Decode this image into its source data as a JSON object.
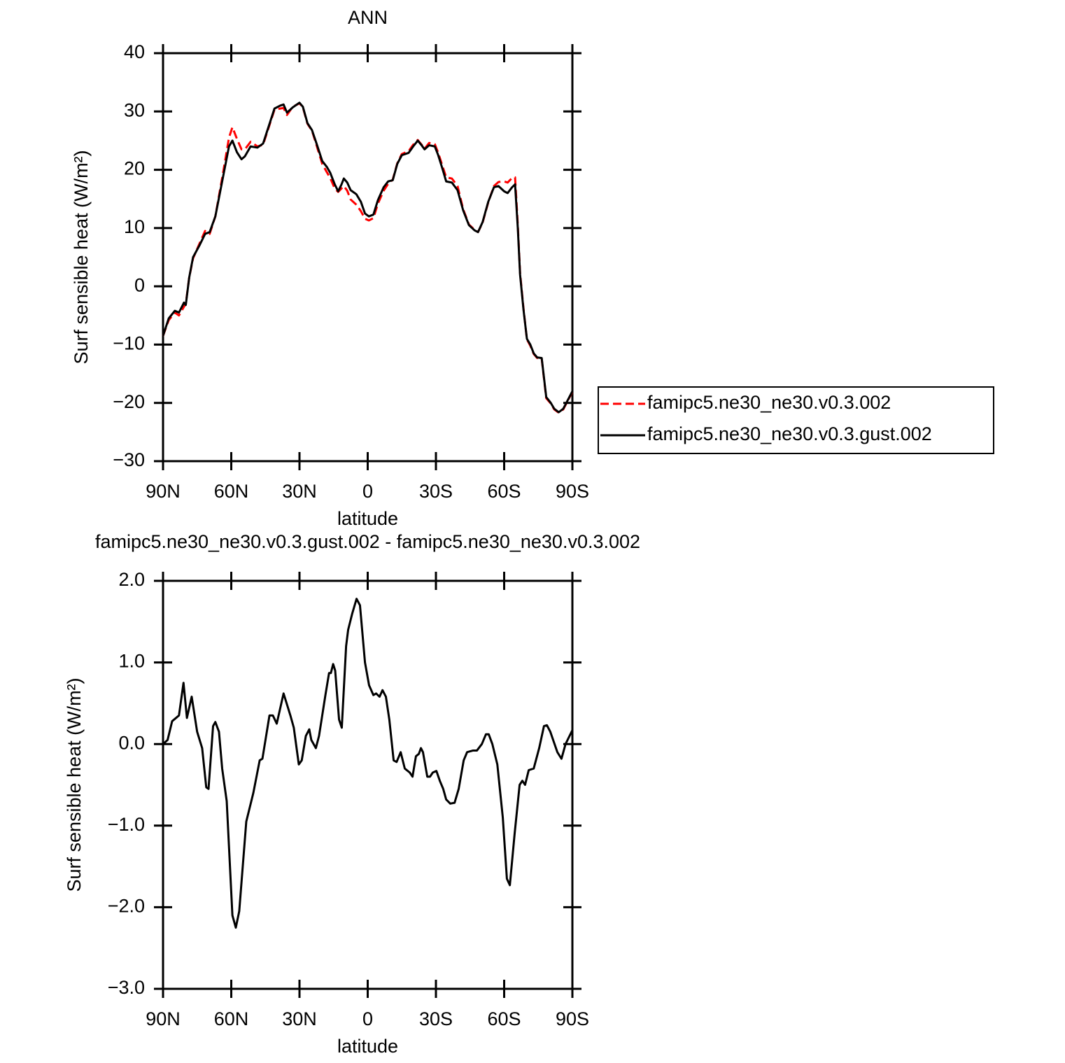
{
  "chart_data": [
    {
      "type": "line",
      "title": "ANN",
      "xlabel": "latitude",
      "ylabel": "Surf sensible heat (W/m²)",
      "x": [
        90,
        87.5,
        84.8,
        83,
        80.8,
        80,
        78.5,
        76.8,
        74,
        71.5,
        69.5,
        67,
        63.5,
        61,
        59.5,
        57.5,
        55.5,
        54,
        51.5,
        48.5,
        46,
        43.5,
        41,
        38.5,
        37,
        35.5,
        33,
        30,
        28.5,
        26.5,
        24.5,
        22.5,
        20,
        18,
        16.5,
        14.5,
        13,
        11.5,
        10.5,
        9,
        7.5,
        5,
        3,
        1.2,
        -0.5,
        -2.5,
        -4.5,
        -7,
        -9,
        -11,
        -13,
        -15,
        -18,
        -20,
        -22,
        -23.5,
        -25,
        -27,
        -29.5,
        -31,
        -33,
        -34.5,
        -37,
        -39.5,
        -42,
        -44.5,
        -47,
        -48.5,
        -50.5,
        -53,
        -55.5,
        -57.5,
        -60,
        -61.5,
        -63.5,
        -64.8,
        -66,
        -67,
        -68.5,
        -70,
        -71.5,
        -73,
        -74.5,
        -76.5,
        -78.5,
        -80.5,
        -82,
        -84,
        -86,
        -88,
        -90
      ],
      "series": [
        {
          "name": "famipc5.ne30_ne30.v0.3.002",
          "color": "#ff0000",
          "linestyle": "dashed",
          "values": [
            -8.5,
            -5.8,
            -4.5,
            -5,
            -3.5,
            -3,
            1.5,
            4.8,
            7.3,
            9.5,
            9,
            12,
            19.7,
            25.5,
            27.3,
            25.3,
            23.5,
            23.5,
            24.8,
            24,
            24.3,
            27.3,
            30.3,
            30.5,
            30.6,
            29.4,
            30.8,
            31.4,
            30.7,
            27.9,
            26.7,
            24.2,
            21,
            19.6,
            18.6,
            16.8,
            16.2,
            16.8,
            17.2,
            16.4,
            14.9,
            14,
            12.9,
            11.6,
            11.3,
            11.7,
            14.2,
            16.4,
            17.6,
            18.3,
            21.1,
            22.7,
            23.2,
            24.3,
            25.1,
            24.4,
            23.6,
            24.6,
            24.4,
            22.9,
            20.5,
            18.7,
            18.5,
            17.2,
            13.2,
            10.6,
            9.7,
            9.3,
            10.9,
            14.4,
            17.2,
            17.9,
            18,
            17.8,
            18.6,
            18.7,
            10.5,
            2.3,
            -3.8,
            -9.1,
            -10.2,
            -11.6,
            -12.3,
            -12.4,
            -19.2,
            -20.1,
            -21.1,
            -21.7,
            -21.1,
            -19.6,
            -18.1
          ]
        },
        {
          "name": "famipc5.ne30_ne30.v0.3.gust.002",
          "color": "#000000",
          "linestyle": "solid",
          "values": [
            -8.5,
            -5.5,
            -4.2,
            -4.5,
            -2.8,
            -3.2,
            1.5,
            5,
            7,
            9,
            9.3,
            12,
            19,
            24,
            25,
            23,
            21.8,
            22.3,
            24,
            23.8,
            24.5,
            27.5,
            30.5,
            31,
            31.2,
            29.8,
            30.7,
            31.5,
            30.8,
            28,
            26.8,
            24.5,
            21.5,
            20.5,
            19.5,
            17.5,
            16.3,
            17.5,
            18.5,
            17.8,
            16.5,
            15.8,
            14.5,
            12.5,
            12,
            12.3,
            14.8,
            17,
            18,
            18.2,
            21,
            22.5,
            22.9,
            24,
            25,
            24.3,
            23.5,
            24.2,
            24,
            22.5,
            20,
            18,
            17.8,
            16.5,
            13,
            10.5,
            9.6,
            9.3,
            11,
            14.5,
            17,
            17.2,
            16.3,
            16,
            17,
            17.5,
            10,
            2,
            -4,
            -9,
            -10,
            -11.5,
            -12.2,
            -12.3,
            -19,
            -20,
            -21,
            -21.6,
            -21,
            -19.5,
            -18
          ]
        }
      ],
      "xlim": [
        90,
        -90
      ],
      "xticks": [
        {
          "value": 90,
          "label": "90N"
        },
        {
          "value": 60,
          "label": "60N"
        },
        {
          "value": 30,
          "label": "30N"
        },
        0,
        {
          "value": -30,
          "label": "30S"
        },
        {
          "value": -60,
          "label": "60S"
        },
        {
          "value": -90,
          "label": "90S"
        }
      ],
      "ylim": [
        -30,
        40
      ],
      "yticks": [
        {
          "value": -30,
          "label": "−30"
        },
        {
          "value": -20,
          "label": "−20"
        },
        {
          "value": -10,
          "label": "−10"
        },
        0,
        10,
        20,
        30,
        40
      ],
      "legend": "right"
    },
    {
      "type": "line",
      "title": "famipc5.ne30_ne30.v0.3.gust.002 - famipc5.ne30_ne30.v0.3.002",
      "xlabel": "latitude",
      "ylabel": "Surf sensible heat (W/m²)",
      "x": [
        90,
        88,
        86,
        83,
        81,
        79.5,
        77.4,
        75,
        72.8,
        71,
        70,
        68,
        67,
        65.4,
        64,
        62,
        59.5,
        58,
        56.5,
        53.4,
        50.3,
        47.5,
        46.3,
        43.2,
        41.7,
        40,
        37,
        34,
        32.5,
        30.3,
        29,
        27.2,
        25.7,
        24.8,
        22.8,
        21.4,
        18.6,
        17,
        16.2,
        15.2,
        14.3,
        12.6,
        11.4,
        9.5,
        8.6,
        6.8,
        4.9,
        3.4,
        1.2,
        -0.6,
        -2.5,
        -3.7,
        -5.2,
        -6.5,
        -8,
        -9.5,
        -11.4,
        -12.7,
        -14.5,
        -16.3,
        -18.5,
        -19.7,
        -21.2,
        -22.5,
        -23.4,
        -24.3,
        -26.2,
        -27.4,
        -28.6,
        -30.2,
        -31.7,
        -33.2,
        -34.5,
        -36.3,
        -38.2,
        -40,
        -42.2,
        -43.7,
        -46.2,
        -48,
        -50.2,
        -52,
        -53.2,
        -54.8,
        -57,
        -59.4,
        -61.2,
        -62.5,
        -64.6,
        -66.8,
        -68,
        -69.2,
        -70.8,
        -73,
        -75.4,
        -77.5,
        -78.8,
        -80.3,
        -83.4,
        -85.2,
        -87,
        -90
      ],
      "values": [
        0.0,
        0.05,
        0.28,
        0.35,
        0.75,
        0.32,
        0.58,
        0.15,
        -0.05,
        -0.53,
        -0.55,
        0.22,
        0.27,
        0.15,
        -0.3,
        -0.7,
        -2.1,
        -2.25,
        -2.05,
        -0.95,
        -0.6,
        -0.2,
        -0.18,
        0.35,
        0.35,
        0.25,
        0.62,
        0.35,
        0.2,
        -0.25,
        -0.2,
        0.1,
        0.18,
        0.05,
        -0.05,
        0.1,
        0.6,
        0.87,
        0.87,
        0.98,
        0.9,
        0.3,
        0.2,
        1.2,
        1.4,
        1.6,
        1.78,
        1.7,
        1.0,
        0.72,
        0.6,
        0.62,
        0.58,
        0.66,
        0.58,
        0.3,
        -0.2,
        -0.22,
        -0.1,
        -0.3,
        -0.35,
        -0.4,
        -0.15,
        -0.12,
        -0.05,
        -0.1,
        -0.4,
        -0.4,
        -0.35,
        -0.33,
        -0.45,
        -0.55,
        -0.68,
        -0.73,
        -0.72,
        -0.55,
        -0.2,
        -0.1,
        -0.08,
        -0.08,
        0.0,
        0.12,
        0.12,
        0.0,
        -0.25,
        -0.9,
        -1.65,
        -1.73,
        -1.1,
        -0.5,
        -0.45,
        -0.5,
        -0.32,
        -0.3,
        -0.05,
        0.22,
        0.23,
        0.15,
        -0.1,
        -0.18,
        0.0,
        0.17
      ],
      "color": "#000000",
      "xlim": [
        90,
        -90
      ],
      "xticks": [
        {
          "value": 90,
          "label": "90N"
        },
        {
          "value": 60,
          "label": "60N"
        },
        {
          "value": 30,
          "label": "30N"
        },
        0,
        {
          "value": -30,
          "label": "30S"
        },
        {
          "value": -60,
          "label": "60S"
        },
        {
          "value": -90,
          "label": "90S"
        }
      ],
      "ylim": [
        -3,
        2
      ],
      "yticks": [
        {
          "value": -3,
          "label": "−3.0"
        },
        {
          "value": -2,
          "label": "−2.0"
        },
        {
          "value": -1,
          "label": "−1.0"
        },
        {
          "value": 0,
          "label": "0.0"
        },
        {
          "value": 1,
          "label": "1.0"
        },
        {
          "value": 2,
          "label": "2.0"
        }
      ]
    }
  ]
}
